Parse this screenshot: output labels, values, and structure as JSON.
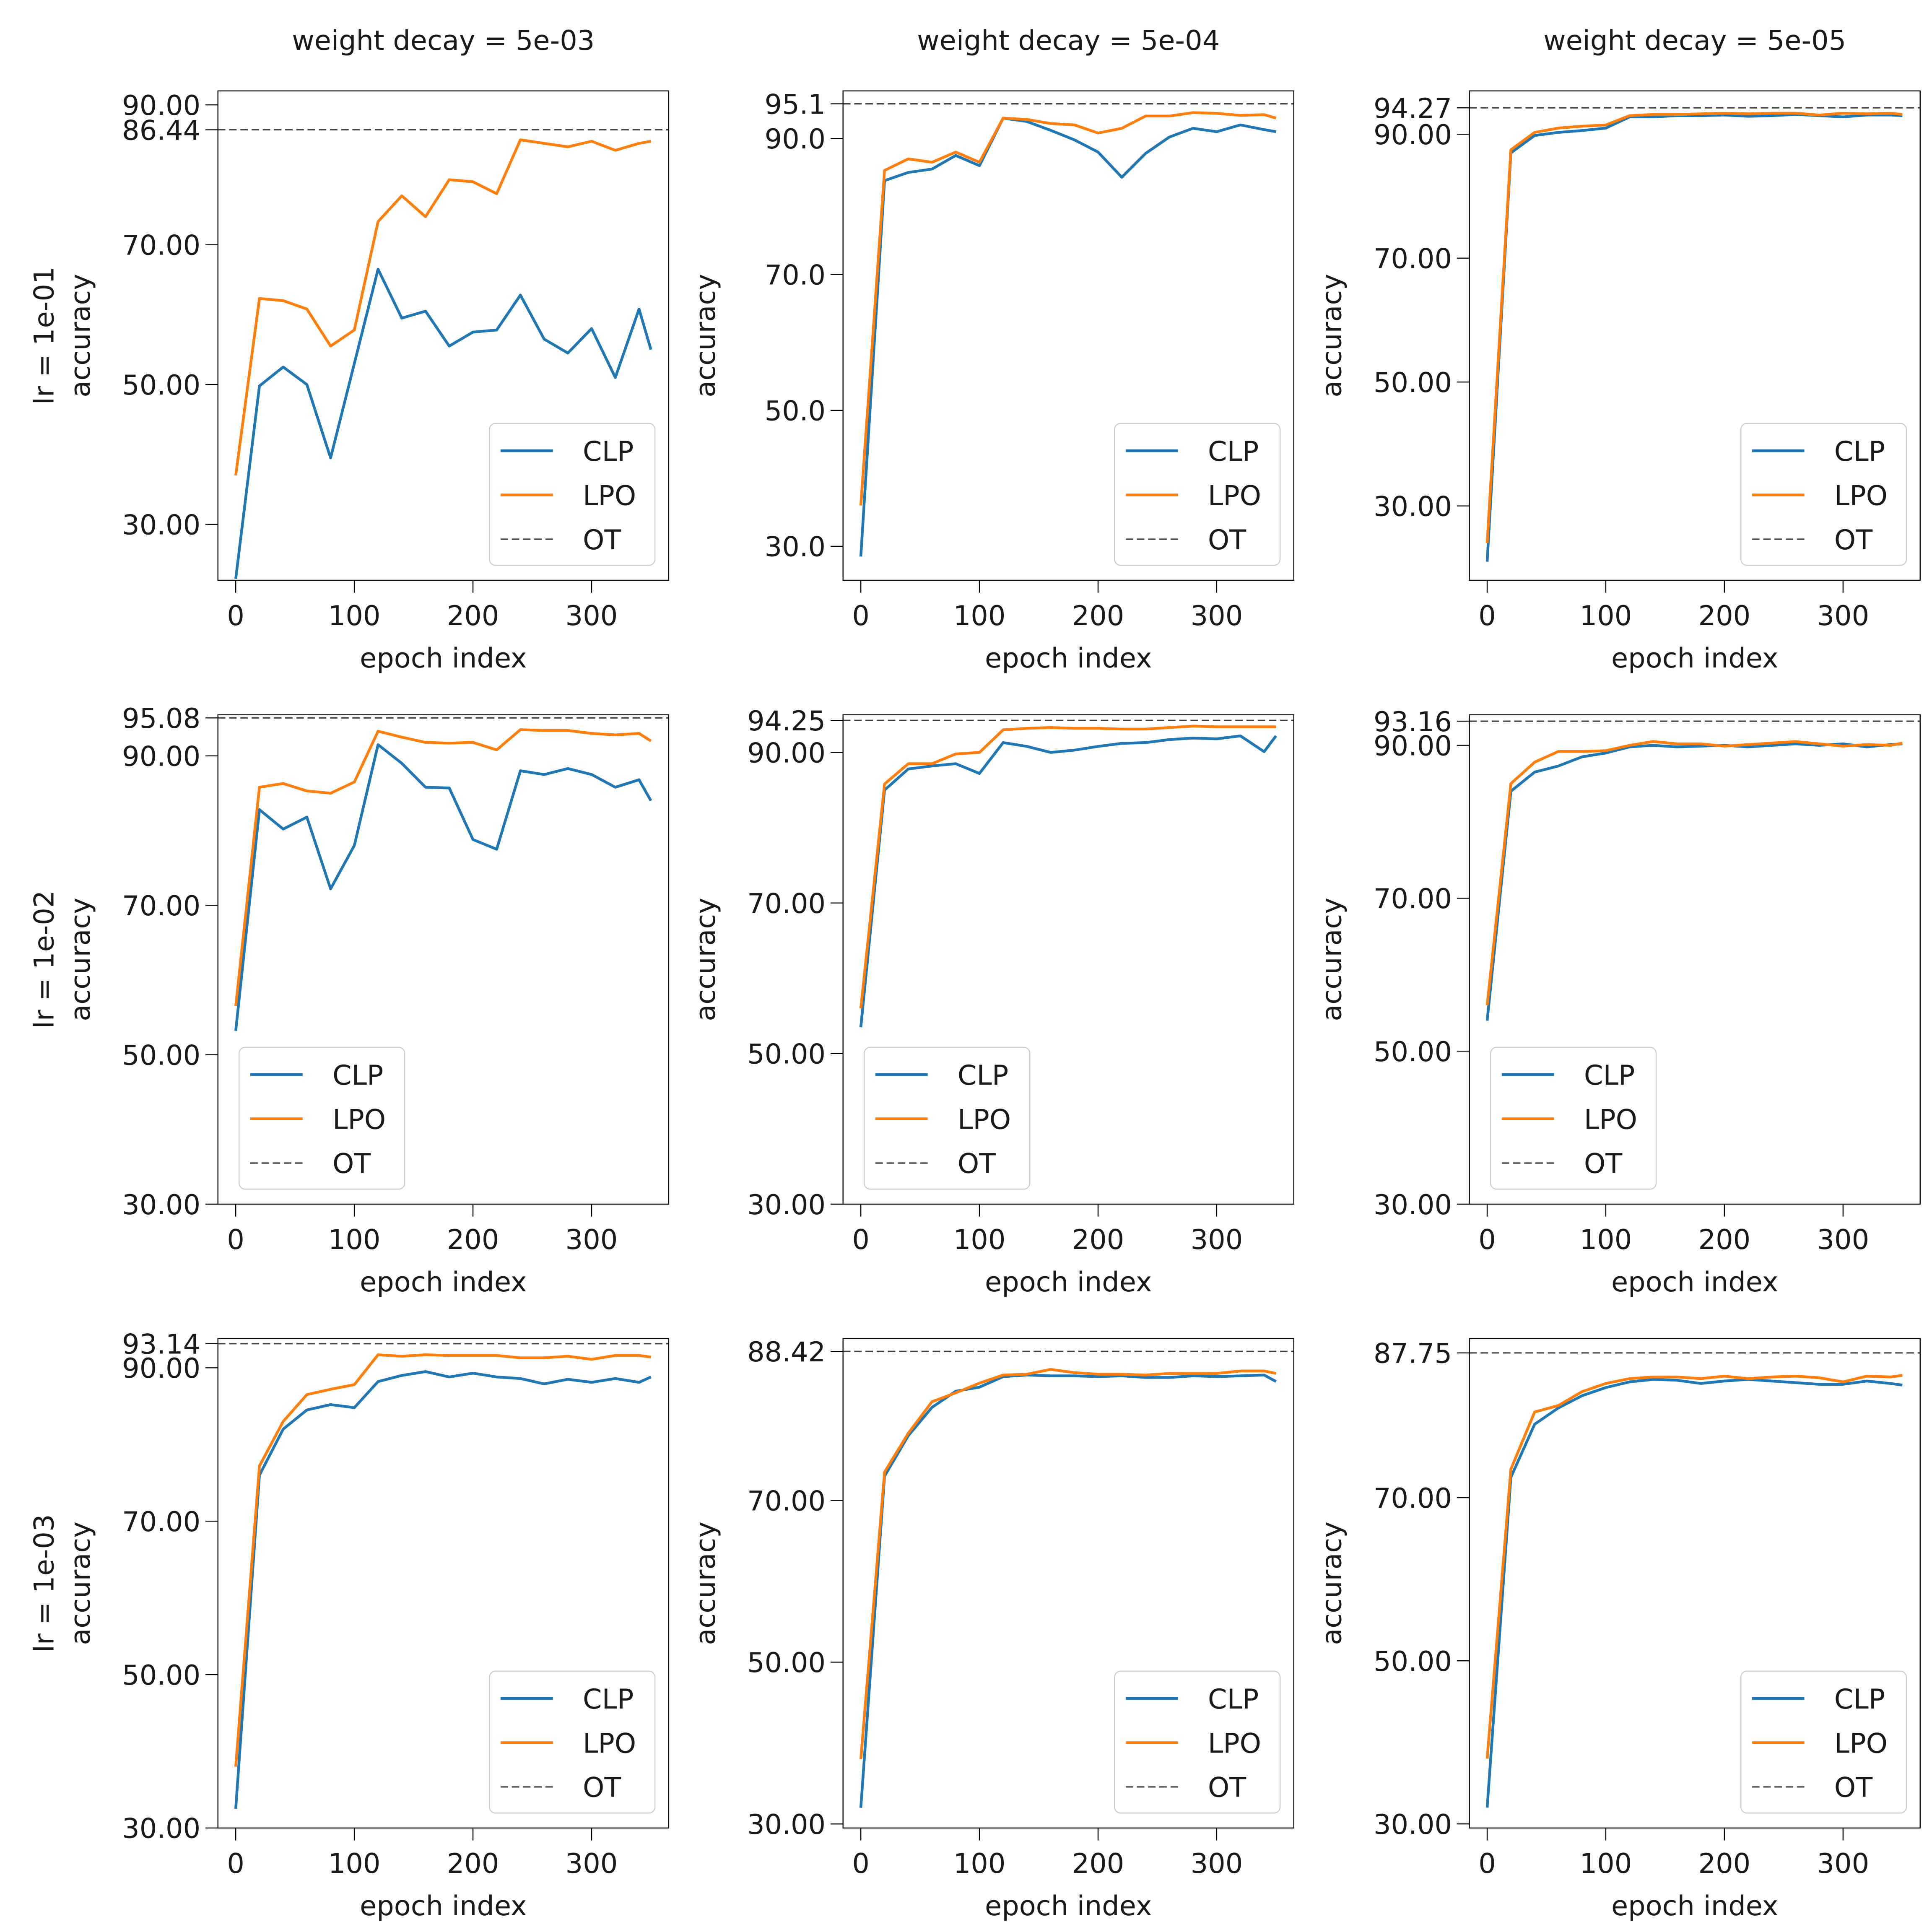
{
  "figure": {
    "col_titles": [
      "weight decay = 5e-03",
      "weight decay = 5e-04",
      "weight decay = 5e-05"
    ],
    "row_titles": [
      "lr = 1e-01",
      "lr = 1e-02",
      "lr = 1e-03"
    ],
    "xlabel": "epoch index",
    "ylabel": "accuracy",
    "legend_labels": [
      "CLP",
      "LPO",
      "OT"
    ],
    "colors": {
      "CLP": "#1f77b4",
      "LPO": "#ff7f0e",
      "OT": "#404040"
    }
  },
  "chart_data": [
    {
      "type": "line",
      "title": "weight decay = 5e-03",
      "row_label": "lr = 1e-01",
      "xlabel": "epoch index",
      "ylabel": "accuracy",
      "xlim": [
        -15,
        365
      ],
      "xticks": [
        0,
        100,
        200,
        300
      ],
      "ylim": [
        22,
        92
      ],
      "yticks": [
        30,
        50,
        70,
        86.44,
        90
      ],
      "ytick_labels": [
        "30.00",
        "50.00",
        "70.00",
        "86.44",
        "90.00"
      ],
      "legend_position": "lower-right",
      "x": [
        0,
        20,
        40,
        60,
        80,
        100,
        120,
        140,
        160,
        180,
        200,
        220,
        240,
        260,
        280,
        300,
        320,
        340,
        350
      ],
      "series": [
        {
          "name": "CLP",
          "values": [
            22.2,
            49.8,
            52.5,
            50.0,
            39.5,
            53,
            66.5,
            59.5,
            60.5,
            55.5,
            57.5,
            57.8,
            62.8,
            56.5,
            54.5,
            58,
            51,
            60.8,
            55
          ]
        },
        {
          "name": "LPO",
          "values": [
            37,
            62.3,
            62,
            60.8,
            55.5,
            57.8,
            73.3,
            77,
            74,
            79.3,
            79,
            77.3,
            85,
            84.5,
            84,
            84.8,
            83.5,
            84.5,
            84.8
          ]
        }
      ],
      "reference": {
        "name": "OT",
        "value": 86.44
      }
    },
    {
      "type": "line",
      "title": "weight decay = 5e-04",
      "row_label": "",
      "xlabel": "epoch index",
      "ylabel": "accuracy",
      "xlim": [
        -15,
        365
      ],
      "xticks": [
        0,
        100,
        200,
        300
      ],
      "ylim": [
        25,
        97
      ],
      "yticks": [
        30,
        50,
        70,
        90,
        95.1
      ],
      "ytick_labels": [
        "30.0",
        "50.0",
        "70.0",
        "90.0",
        "95.1"
      ],
      "legend_position": "lower-right",
      "x": [
        0,
        20,
        40,
        60,
        80,
        100,
        120,
        140,
        160,
        180,
        200,
        220,
        240,
        260,
        280,
        300,
        320,
        340,
        350
      ],
      "series": [
        {
          "name": "CLP",
          "values": [
            28.5,
            83.8,
            85,
            85.5,
            87.5,
            86,
            93,
            92.5,
            91.2,
            89.8,
            88,
            84.3,
            87.8,
            90.2,
            91.5,
            91,
            92,
            91.3,
            91
          ]
        },
        {
          "name": "LPO",
          "values": [
            36,
            85.3,
            87,
            86.5,
            88,
            86.5,
            93,
            92.8,
            92.2,
            92,
            90.8,
            91.5,
            93.3,
            93.3,
            93.8,
            93.7,
            93.4,
            93.5,
            93
          ]
        }
      ],
      "reference": {
        "name": "OT",
        "value": 95.1
      }
    },
    {
      "type": "line",
      "title": "weight decay = 5e-05",
      "row_label": "",
      "xlabel": "epoch index",
      "ylabel": "accuracy",
      "xlim": [
        -15,
        365
      ],
      "xticks": [
        0,
        100,
        200,
        300
      ],
      "ylim": [
        18,
        97
      ],
      "yticks": [
        30,
        50,
        70,
        90,
        94.27
      ],
      "ytick_labels": [
        "30.00",
        "50.00",
        "70.00",
        "90.00",
        "94.27"
      ],
      "legend_position": "lower-right",
      "x": [
        0,
        20,
        40,
        60,
        80,
        100,
        120,
        140,
        160,
        180,
        200,
        220,
        240,
        260,
        280,
        300,
        320,
        340,
        350
      ],
      "series": [
        {
          "name": "CLP",
          "values": [
            21,
            87,
            89.8,
            90.3,
            90.6,
            91,
            92.8,
            92.8,
            93,
            93,
            93.1,
            92.9,
            93,
            93.2,
            93,
            92.8,
            93.1,
            93.1,
            93
          ]
        },
        {
          "name": "LPO",
          "values": [
            24,
            87.5,
            90.3,
            91,
            91.3,
            91.5,
            93,
            93.2,
            93.2,
            93.3,
            93.4,
            93.3,
            93.4,
            93.4,
            93.1,
            93.4,
            93.3,
            93.4,
            93.2
          ]
        }
      ],
      "reference": {
        "name": "OT",
        "value": 94.27
      }
    },
    {
      "type": "line",
      "title": "",
      "row_label": "lr = 1e-02",
      "xlabel": "epoch index",
      "ylabel": "accuracy",
      "xlim": [
        -15,
        365
      ],
      "xticks": [
        0,
        100,
        200,
        300
      ],
      "ylim": [
        30,
        95.5
      ],
      "yticks": [
        30,
        50,
        70,
        90,
        95.08
      ],
      "ytick_labels": [
        "30.00",
        "50.00",
        "70.00",
        "90.00",
        "95.08"
      ],
      "legend_position": "lower-left",
      "x": [
        0,
        20,
        40,
        60,
        80,
        100,
        120,
        140,
        160,
        180,
        200,
        220,
        240,
        260,
        280,
        300,
        320,
        340,
        350
      ],
      "series": [
        {
          "name": "CLP",
          "values": [
            53.2,
            82.8,
            80.2,
            81.8,
            72.2,
            78,
            91.5,
            89,
            85.8,
            85.7,
            78.8,
            77.5,
            88,
            87.5,
            88.3,
            87.5,
            85.8,
            86.8,
            84
          ]
        },
        {
          "name": "LPO",
          "values": [
            56.5,
            85.8,
            86.3,
            85.3,
            85,
            86.5,
            93.3,
            92.5,
            91.8,
            91.7,
            91.8,
            90.8,
            93.5,
            93.4,
            93.4,
            93,
            92.8,
            93,
            92
          ]
        }
      ],
      "reference": {
        "name": "OT",
        "value": 95.08
      }
    },
    {
      "type": "line",
      "title": "",
      "row_label": "",
      "xlabel": "epoch index",
      "ylabel": "accuracy",
      "xlim": [
        -15,
        365
      ],
      "xticks": [
        0,
        100,
        200,
        300
      ],
      "ylim": [
        30,
        95
      ],
      "yticks": [
        30,
        50,
        70,
        90,
        94.25
      ],
      "ytick_labels": [
        "30.00",
        "50.00",
        "70.00",
        "90.00",
        "94.25"
      ],
      "legend_position": "lower-left",
      "x": [
        0,
        20,
        40,
        60,
        80,
        100,
        120,
        140,
        160,
        180,
        200,
        220,
        240,
        260,
        280,
        300,
        320,
        340,
        350
      ],
      "series": [
        {
          "name": "CLP",
          "values": [
            53.5,
            85,
            87.8,
            88.2,
            88.5,
            87.2,
            91.3,
            90.8,
            90,
            90.3,
            90.8,
            91.2,
            91.3,
            91.7,
            91.9,
            91.8,
            92.2,
            90.1,
            92.2
          ]
        },
        {
          "name": "LPO",
          "values": [
            56,
            85.8,
            88.5,
            88.5,
            89.8,
            90,
            93,
            93.2,
            93.3,
            93.2,
            93.2,
            93.1,
            93.1,
            93.3,
            93.5,
            93.4,
            93.4,
            93.4,
            93.4
          ]
        }
      ],
      "reference": {
        "name": "OT",
        "value": 94.25
      }
    },
    {
      "type": "line",
      "title": "",
      "row_label": "",
      "xlabel": "epoch index",
      "ylabel": "accuracy",
      "xlim": [
        -15,
        365
      ],
      "xticks": [
        0,
        100,
        200,
        300
      ],
      "ylim": [
        30,
        94
      ],
      "yticks": [
        30,
        50,
        70,
        90,
        93.16
      ],
      "ytick_labels": [
        "30.00",
        "50.00",
        "70.00",
        "90.00",
        "93.16"
      ],
      "legend_position": "lower-left",
      "x": [
        0,
        20,
        40,
        60,
        80,
        100,
        120,
        140,
        160,
        180,
        200,
        220,
        240,
        260,
        280,
        300,
        320,
        340,
        350
      ],
      "series": [
        {
          "name": "CLP",
          "values": [
            54,
            84,
            86.5,
            87.3,
            88.5,
            89,
            89.8,
            90,
            89.8,
            89.9,
            90,
            89.8,
            90,
            90.2,
            90,
            90.2,
            89.8,
            90.1,
            90.2
          ]
        },
        {
          "name": "LPO",
          "values": [
            56,
            85,
            87.8,
            89.2,
            89.2,
            89.3,
            90,
            90.5,
            90.2,
            90.2,
            89.9,
            90.1,
            90.3,
            90.5,
            90.2,
            89.9,
            90.1,
            90,
            90.3
          ]
        }
      ],
      "reference": {
        "name": "OT",
        "value": 93.16
      }
    },
    {
      "type": "line",
      "title": "",
      "row_label": "lr = 1e-03",
      "xlabel": "epoch index",
      "ylabel": "accuracy",
      "xlim": [
        -15,
        365
      ],
      "xticks": [
        0,
        100,
        200,
        300
      ],
      "ylim": [
        30,
        93.8
      ],
      "yticks": [
        30,
        50,
        70,
        90,
        93.14
      ],
      "ytick_labels": [
        "30.00",
        "50.00",
        "70.00",
        "90.00",
        "93.14"
      ],
      "legend_position": "lower-right",
      "x": [
        0,
        20,
        40,
        60,
        80,
        100,
        120,
        140,
        160,
        180,
        200,
        220,
        240,
        260,
        280,
        300,
        320,
        340,
        350
      ],
      "series": [
        {
          "name": "CLP",
          "values": [
            32.5,
            76,
            82,
            84.5,
            85.2,
            84.8,
            88.2,
            89,
            89.5,
            88.8,
            89.3,
            88.8,
            88.6,
            87.9,
            88.5,
            88.1,
            88.6,
            88.1,
            88.8
          ]
        },
        {
          "name": "LPO",
          "values": [
            38,
            77.2,
            83,
            86.5,
            87.2,
            87.8,
            91.7,
            91.5,
            91.7,
            91.6,
            91.6,
            91.6,
            91.3,
            91.3,
            91.5,
            91.1,
            91.6,
            91.6,
            91.4
          ]
        }
      ],
      "reference": {
        "name": "OT",
        "value": 93.14
      }
    },
    {
      "type": "line",
      "title": "",
      "row_label": "",
      "xlabel": "epoch index",
      "ylabel": "accuracy",
      "xlim": [
        -15,
        365
      ],
      "xticks": [
        0,
        100,
        200,
        300
      ],
      "ylim": [
        29.5,
        90
      ],
      "yticks": [
        30,
        50,
        70,
        88.42
      ],
      "ytick_labels": [
        "30.00",
        "50.00",
        "70.00",
        "88.42"
      ],
      "legend_position": "lower-right",
      "x": [
        0,
        20,
        40,
        60,
        80,
        100,
        120,
        140,
        160,
        180,
        200,
        220,
        240,
        260,
        280,
        300,
        320,
        340,
        350
      ],
      "series": [
        {
          "name": "CLP",
          "values": [
            32,
            73,
            78,
            81.5,
            83.5,
            84,
            85.3,
            85.5,
            85.4,
            85.4,
            85.3,
            85.4,
            85.2,
            85.2,
            85.4,
            85.3,
            85.4,
            85.5,
            84.7
          ]
        },
        {
          "name": "LPO",
          "values": [
            38,
            73.5,
            78.3,
            82.2,
            83.3,
            84.5,
            85.5,
            85.6,
            86.2,
            85.8,
            85.6,
            85.6,
            85.5,
            85.7,
            85.7,
            85.7,
            86,
            86,
            85.7
          ]
        }
      ],
      "reference": {
        "name": "OT",
        "value": 88.42
      }
    },
    {
      "type": "line",
      "title": "",
      "row_label": "",
      "xlabel": "epoch index",
      "ylabel": "accuracy",
      "xlim": [
        -15,
        365
      ],
      "xticks": [
        0,
        100,
        200,
        300
      ],
      "ylim": [
        29.5,
        89.5
      ],
      "yticks": [
        30,
        50,
        70,
        87.75
      ],
      "ytick_labels": [
        "30.00",
        "50.00",
        "70.00",
        "87.75"
      ],
      "legend_position": "lower-right",
      "x": [
        0,
        20,
        40,
        60,
        80,
        100,
        120,
        140,
        160,
        180,
        200,
        220,
        240,
        260,
        280,
        300,
        320,
        340,
        350
      ],
      "series": [
        {
          "name": "CLP",
          "values": [
            32,
            72.5,
            79,
            81,
            82.5,
            83.5,
            84.2,
            84.5,
            84.4,
            84,
            84.3,
            84.5,
            84.3,
            84.1,
            83.9,
            83.9,
            84.3,
            84,
            83.8
          ]
        },
        {
          "name": "LPO",
          "values": [
            38,
            73.5,
            80.5,
            81.3,
            83,
            84,
            84.6,
            84.8,
            84.8,
            84.6,
            84.9,
            84.6,
            84.8,
            84.9,
            84.7,
            84.2,
            84.9,
            84.8,
            85
          ]
        }
      ],
      "reference": {
        "name": "OT",
        "value": 87.75
      }
    }
  ]
}
